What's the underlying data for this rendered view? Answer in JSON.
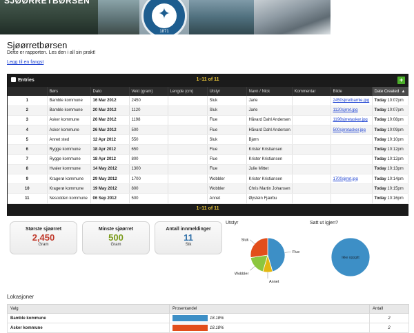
{
  "banner": {
    "site_title": "SJØØRRETBØRSEN",
    "logo_year": "1871"
  },
  "page": {
    "title": "Sjøørretbørsen",
    "subtitle": "Dette er rapporten. Les den i all sin prakt!",
    "add_link": "Legg til en fangst"
  },
  "entries": {
    "label": "Entries",
    "pager": "1–11 of 11",
    "add_button": "+",
    "columns": [
      "",
      "Børs",
      "Dato",
      "Vekt (gram)",
      "Lengde (cm)",
      "Utstyr",
      "Navn / Nick",
      "Kommentar",
      "Bilde",
      "Date Created"
    ],
    "rows": [
      {
        "n": "1",
        "bors": "Bamble kommune",
        "dato": "16 Mar 2012",
        "vekt": "2450",
        "lengde": "",
        "utstyr": "Sluk",
        "navn": "Jarle",
        "kommentar": "",
        "bilde": "2450sjrretbamle.jpg",
        "day": "Today",
        "time": "10:07pm"
      },
      {
        "n": "2",
        "bors": "Bamble kommune",
        "dato": "20 Mar 2012",
        "vekt": "1120",
        "lengde": "",
        "utstyr": "Sluk",
        "navn": "Jarle",
        "kommentar": "",
        "bilde": "1120sjrret.jpg",
        "day": "Today",
        "time": "10:07pm"
      },
      {
        "n": "3",
        "bors": "Asker kommune",
        "dato": "26 Mar 2012",
        "vekt": "1198",
        "lengde": "",
        "utstyr": "Flue",
        "navn": "Håvard Dahl Andersen",
        "kommentar": "",
        "bilde": "1198sjrretasker.jpg",
        "day": "Today",
        "time": "10:08pm"
      },
      {
        "n": "4",
        "bors": "Asker kommune",
        "dato": "26 Mar 2012",
        "vekt": "500",
        "lengde": "",
        "utstyr": "Flue",
        "navn": "Håvard Dahl Andersen",
        "kommentar": "",
        "bilde": "500sjrretasker.jpg",
        "day": "Today",
        "time": "10:09pm"
      },
      {
        "n": "5",
        "bors": "Annet sted",
        "dato": "12 Apr 2012",
        "vekt": "550",
        "lengde": "",
        "utstyr": "Sluk",
        "navn": "Bjørn",
        "kommentar": "",
        "bilde": "",
        "day": "Today",
        "time": "10:10pm"
      },
      {
        "n": "6",
        "bors": "Rygge kommune",
        "dato": "18 Apr 2012",
        "vekt": "650",
        "lengde": "",
        "utstyr": "Flue",
        "navn": "Krister Kristiansen",
        "kommentar": "",
        "bilde": "",
        "day": "Today",
        "time": "10:12pm"
      },
      {
        "n": "7",
        "bors": "Rygge kommune",
        "dato": "18 Apr 2012",
        "vekt": "800",
        "lengde": "",
        "utstyr": "Flue",
        "navn": "Krister Kristiansen",
        "kommentar": "",
        "bilde": "",
        "day": "Today",
        "time": "10:12pm"
      },
      {
        "n": "8",
        "bors": "Hvaler kommune",
        "dato": "14 May 2012",
        "vekt": "1300",
        "lengde": "",
        "utstyr": "Flue",
        "navn": "Julie Mittet",
        "kommentar": "",
        "bilde": "",
        "day": "Today",
        "time": "10:13pm"
      },
      {
        "n": "9",
        "bors": "Kragerø kommune",
        "dato": "29 May 2012",
        "vekt": "1700",
        "lengde": "",
        "utstyr": "Wobbler",
        "navn": "Krister Kristiansen",
        "kommentar": "",
        "bilde": "1700sjrret.jpg",
        "day": "Today",
        "time": "10:14pm"
      },
      {
        "n": "10",
        "bors": "Kragerø kommune",
        "dato": "19 May 2012",
        "vekt": "800",
        "lengde": "",
        "utstyr": "Wobbler",
        "navn": "Chris Martin Johansen",
        "kommentar": "",
        "bilde": "",
        "day": "Today",
        "time": "10:15pm"
      },
      {
        "n": "11",
        "bors": "Nesodden kommune",
        "dato": "06 Sep 2012",
        "vekt": "500",
        "lengde": "",
        "utstyr": "Annet",
        "navn": "Øystein Fjærbu",
        "kommentar": "",
        "bilde": "",
        "day": "Today",
        "time": "10:16pm"
      }
    ],
    "footer_pager": "1–11 of 11"
  },
  "stats": [
    {
      "label": "Største sjøørret",
      "value": "2,450",
      "unit": "Gram",
      "color": "#c0392b"
    },
    {
      "label": "Minste sjøørret",
      "value": "500",
      "unit": "Gram",
      "color": "#7a9a1a"
    },
    {
      "label": "Antall innmeldinger",
      "value": "11",
      "unit": "Stk",
      "color": "#2f6fa8"
    }
  ],
  "chart_data": [
    {
      "type": "pie",
      "title": "Utstyr",
      "labels": [
        "Flue",
        "Annet",
        "Wobbler",
        "Sluk"
      ],
      "values": [
        5,
        1,
        2,
        3
      ],
      "colors": [
        "#3d8fc6",
        "#e2b711",
        "#8cc63e",
        "#e24e1b"
      ]
    },
    {
      "type": "pie",
      "title": "Satt ut igjen?",
      "labels": [
        "Ikke oppgitt"
      ],
      "values": [
        11
      ],
      "colors": [
        "#3d8fc6"
      ]
    }
  ],
  "locations": {
    "title": "Lokasjoner",
    "columns": [
      "Valg",
      "Prosentandel",
      "Antall"
    ],
    "rows": [
      {
        "name": "Bamble kommune",
        "pct": "18.18%",
        "fraction": 0.1818,
        "count": "2",
        "color": "#3d8fc6"
      },
      {
        "name": "Asker kommune",
        "pct": "18.18%",
        "fraction": 0.1818,
        "count": "2",
        "color": "#e24e1b"
      }
    ]
  }
}
